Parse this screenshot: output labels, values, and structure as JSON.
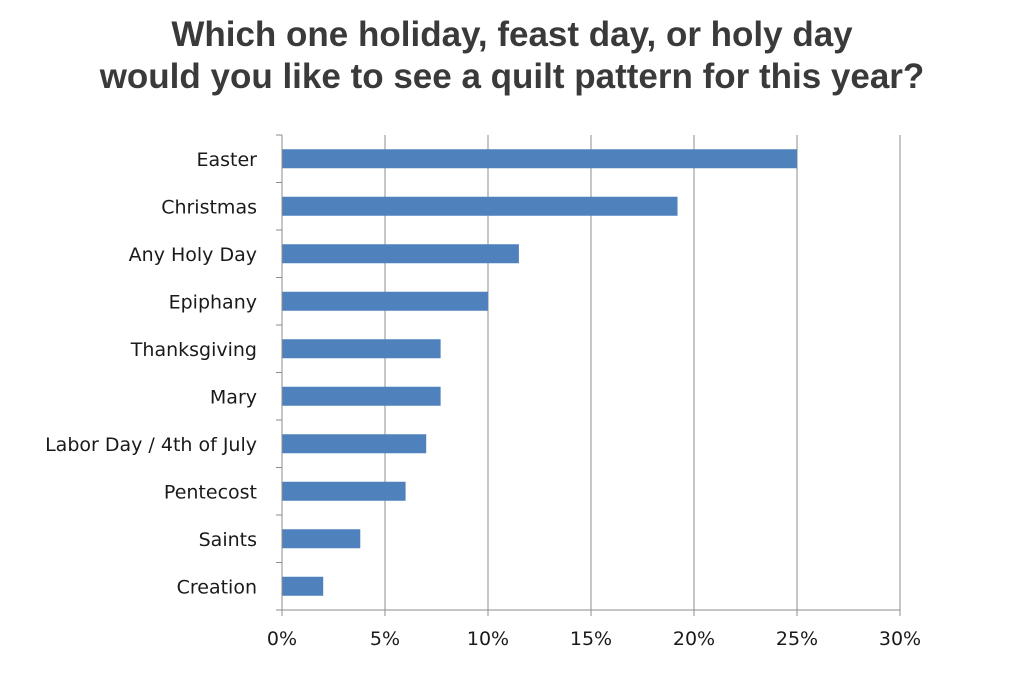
{
  "chart_data": {
    "type": "bar",
    "orientation": "horizontal",
    "title_lines": [
      "Which one holiday, feast day, or holy day",
      "would you like to see a quilt pattern for this year?"
    ],
    "categories": [
      "Easter",
      "Christmas",
      "Any Holy Day",
      "Epiphany",
      "Thanksgiving",
      "Mary",
      "Labor Day / 4th of July",
      "Pentecost",
      "Saints",
      "Creation"
    ],
    "values": [
      25.0,
      19.2,
      11.5,
      10.0,
      7.7,
      7.7,
      7.0,
      6.0,
      3.8,
      2.0
    ],
    "value_unit": "%",
    "xlim": [
      0,
      30
    ],
    "xticks": [
      "0%",
      "5%",
      "10%",
      "15%",
      "20%",
      "25%",
      "30%"
    ],
    "grid": "vertical",
    "bar_color": "#4f81bd"
  }
}
